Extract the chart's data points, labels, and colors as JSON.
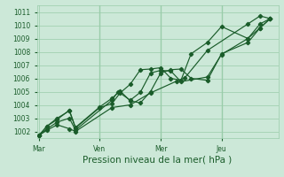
{
  "background_color": "#cce8d8",
  "grid_color": "#99ccaa",
  "line_color": "#1a5c2a",
  "title": "Pression niveau de la mer( hPa )",
  "ylim": [
    1001.5,
    1011.5
  ],
  "yticks": [
    1002,
    1003,
    1004,
    1005,
    1006,
    1007,
    1008,
    1009,
    1010,
    1011
  ],
  "xtick_labels": [
    "Mar",
    "Ven",
    "Mer",
    "Jeu"
  ],
  "xtick_positions": [
    0,
    3,
    6,
    9
  ],
  "xlim": [
    -0.1,
    11.8
  ],
  "vlines_x": [
    3,
    6,
    9
  ],
  "series": [
    {
      "x": [
        0.0,
        0.4,
        0.9,
        1.5,
        1.8,
        3.6,
        4.5,
        5.5,
        6.8,
        7.2,
        8.3,
        10.3,
        10.9,
        11.4
      ],
      "y": [
        1001.7,
        1002.1,
        1002.5,
        1002.2,
        1002.0,
        1003.8,
        1004.0,
        1004.9,
        1005.8,
        1006.05,
        1008.1,
        1010.1,
        1010.7,
        1010.5
      ]
    },
    {
      "x": [
        0.0,
        0.4,
        0.9,
        1.5,
        1.8,
        3.6,
        3.9,
        4.5,
        5.0,
        5.5,
        6.0,
        6.5,
        7.0,
        8.3,
        9.0,
        10.3,
        10.9,
        11.4
      ],
      "y": [
        1001.7,
        1002.2,
        1002.7,
        1003.0,
        1002.1,
        1004.35,
        1005.0,
        1004.35,
        1004.95,
        1006.4,
        1006.6,
        1006.55,
        1005.75,
        1006.1,
        1007.8,
        1009.0,
        1009.8,
        1010.5
      ]
    },
    {
      "x": [
        0.0,
        0.4,
        0.9,
        1.5,
        1.8,
        3.0,
        3.6,
        4.0,
        4.5,
        5.0,
        5.5,
        6.0,
        6.5,
        7.0,
        7.5,
        8.3,
        9.0,
        10.3,
        10.9,
        11.4
      ],
      "y": [
        1001.7,
        1002.4,
        1002.9,
        1003.6,
        1002.3,
        1003.85,
        1004.5,
        1005.05,
        1004.3,
        1004.15,
        1005.0,
        1006.4,
        1006.65,
        1006.7,
        1006.0,
        1005.85,
        1007.85,
        1008.7,
        1009.8,
        1010.5
      ]
    },
    {
      "x": [
        0.0,
        0.4,
        0.9,
        1.5,
        1.8,
        3.0,
        3.6,
        4.0,
        4.5,
        5.0,
        5.5,
        6.0,
        6.5,
        7.0,
        7.5,
        8.3,
        9.0,
        10.3,
        10.9,
        11.4
      ],
      "y": [
        1001.7,
        1002.4,
        1003.0,
        1003.55,
        1002.25,
        1003.8,
        1004.1,
        1004.9,
        1005.55,
        1006.65,
        1006.7,
        1006.8,
        1006.0,
        1005.85,
        1007.85,
        1008.7,
        1009.9,
        1009.0,
        1010.1,
        1010.5
      ]
    }
  ],
  "marker": "D",
  "marker_size": 2.2,
  "linewidth": 0.85,
  "tick_fontsize": 5.5,
  "xlabel_fontsize": 7.5
}
